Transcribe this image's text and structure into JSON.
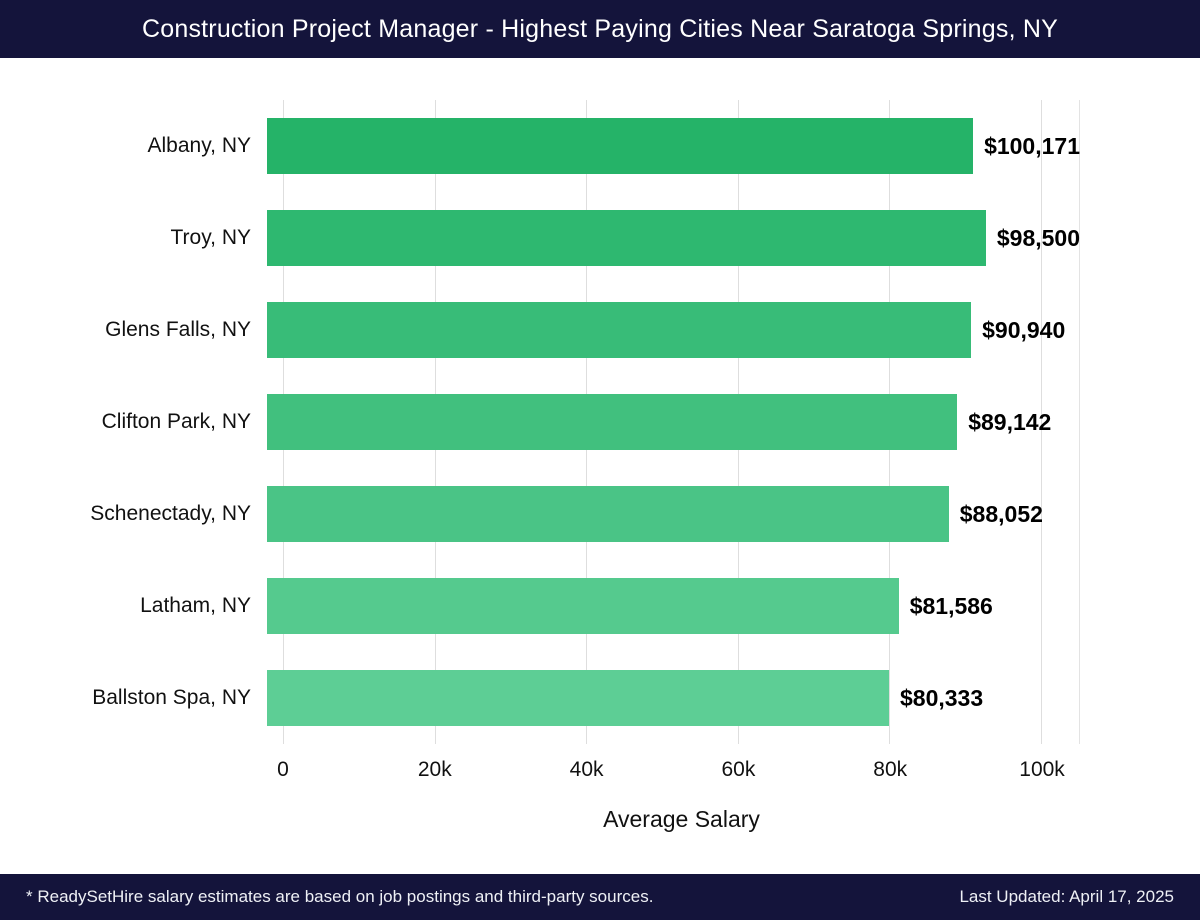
{
  "header": {
    "title": "Construction Project Manager - Highest Paying Cities Near Saratoga Springs, NY"
  },
  "footer": {
    "left": "* ReadySetHire salary estimates are based on job postings and third-party sources.",
    "right": "Last Updated: April 17, 2025"
  },
  "colors": {
    "header_bg": "#14143b",
    "grid": "#dedede",
    "bar_colors": [
      "#25b368",
      "#2eb870",
      "#38bc78",
      "#41c07e",
      "#4ac486",
      "#55ca8e",
      "#5dce95"
    ]
  },
  "chart_data": {
    "type": "bar",
    "orientation": "horizontal",
    "title": "Construction Project Manager - Highest Paying Cities Near Saratoga Springs, NY",
    "categories": [
      "Albany, NY",
      "Troy, NY",
      "Glens Falls, NY",
      "Clifton Park, NY",
      "Schenectady, NY",
      "Latham, NY",
      "Ballston Spa, NY"
    ],
    "values": [
      100171,
      98500,
      90940,
      89142,
      88052,
      81586,
      80333
    ],
    "value_labels": [
      "$100,171",
      "$98,500",
      "$90,940",
      "$89,142",
      "$88,052",
      "$81,586",
      "$80,333"
    ],
    "xlabel": "Average Salary",
    "ylabel": "",
    "xlim": [
      0,
      105000
    ],
    "xticks": [
      0,
      20000,
      40000,
      60000,
      80000,
      100000
    ],
    "xtick_labels": [
      "0",
      "20k",
      "40k",
      "60k",
      "80k",
      "100k"
    ],
    "grid": true,
    "legend": false
  }
}
